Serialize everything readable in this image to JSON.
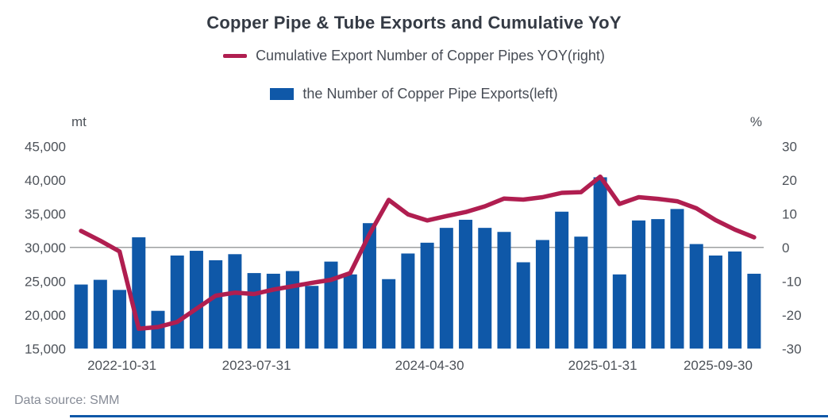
{
  "title": "Copper Pipe & Tube Exports and Cumulative YoY",
  "legend": [
    {
      "label": "Cumulative Export Number of Copper Pipes YOY(right)",
      "type": "line",
      "color": "#b01e50"
    },
    {
      "label": "the Number of Copper Pipe Exports(left)",
      "type": "bar",
      "color": "#0f58a8"
    }
  ],
  "footer": {
    "source_label": "Data source:  SMM"
  },
  "axes": {
    "left_unit": "mt",
    "right_unit": "%"
  },
  "colors": {
    "bar": "#0f58a8",
    "line": "#b01e50",
    "axis_text": "#4d5259",
    "gridline": "#7f8083",
    "bottom_rule": "#0f58a8"
  },
  "chart_data": {
    "type": "bar",
    "combo": "bar+line",
    "title": "Copper Pipe & Tube Exports and Cumulative YoY",
    "x_count": 36,
    "x_tick_labels": [
      {
        "index": 2,
        "label": "2022-10-31"
      },
      {
        "index": 9,
        "label": "2023-07-31"
      },
      {
        "index": 18,
        "label": "2024-04-30"
      },
      {
        "index": 27,
        "label": "2025-01-31"
      },
      {
        "index": 33,
        "label": "2025-09-30"
      }
    ],
    "left_axis": {
      "unit": "mt",
      "min": 15000,
      "max": 45000,
      "ticks": [
        {
          "v": 45000,
          "label": "45,000"
        },
        {
          "v": 40000,
          "label": "40,000"
        },
        {
          "v": 35000,
          "label": "35,000"
        },
        {
          "v": 30000,
          "label": "30,000"
        },
        {
          "v": 25000,
          "label": "25,000"
        },
        {
          "v": 20000,
          "label": "20,000"
        },
        {
          "v": 15000,
          "label": "15,000"
        }
      ]
    },
    "right_axis": {
      "unit": "%",
      "min": -30,
      "max": 30,
      "ticks": [
        {
          "v": 30,
          "label": "30"
        },
        {
          "v": 20,
          "label": "20"
        },
        {
          "v": 10,
          "label": "10"
        },
        {
          "v": 0,
          "label": "0"
        },
        {
          "v": -10,
          "label": "-10"
        },
        {
          "v": -20,
          "label": "-20"
        },
        {
          "v": -30,
          "label": "-30"
        }
      ]
    },
    "gridline_right_value": 0,
    "series": [
      {
        "name": "the Number of Copper Pipe Exports(left)",
        "type": "bar",
        "axis": "left",
        "color": "#0f58a8",
        "values": [
          24500,
          25200,
          23700,
          31500,
          20600,
          28800,
          29500,
          28100,
          29000,
          26200,
          26100,
          26500,
          24300,
          27900,
          26000,
          33600,
          25300,
          29100,
          30700,
          32900,
          34100,
          32900,
          32300,
          27800,
          31100,
          35300,
          31600,
          40400,
          26000,
          34000,
          34200,
          35700,
          30500,
          28800,
          29400,
          26100
        ]
      },
      {
        "name": "Cumulative Export Number of Copper Pipes YOY(right)",
        "type": "line",
        "axis": "right",
        "color": "#b01e50",
        "values": [
          4.9,
          2.0,
          -1.2,
          -24.1,
          -23.6,
          -22.1,
          -18.2,
          -14.3,
          -13.4,
          -13.8,
          -12.5,
          -11.5,
          -10.5,
          -9.6,
          -7.6,
          3.9,
          14.1,
          9.8,
          8.0,
          9.3,
          10.5,
          12.2,
          14.5,
          14.2,
          14.9,
          16.2,
          16.4,
          21.0,
          12.9,
          14.9,
          14.4,
          13.7,
          11.6,
          8.1,
          5.3,
          3.0
        ]
      }
    ],
    "legend_position": "top",
    "grid": "single horizontal gridline at right-axis 0 (left-axis 30,000)"
  }
}
